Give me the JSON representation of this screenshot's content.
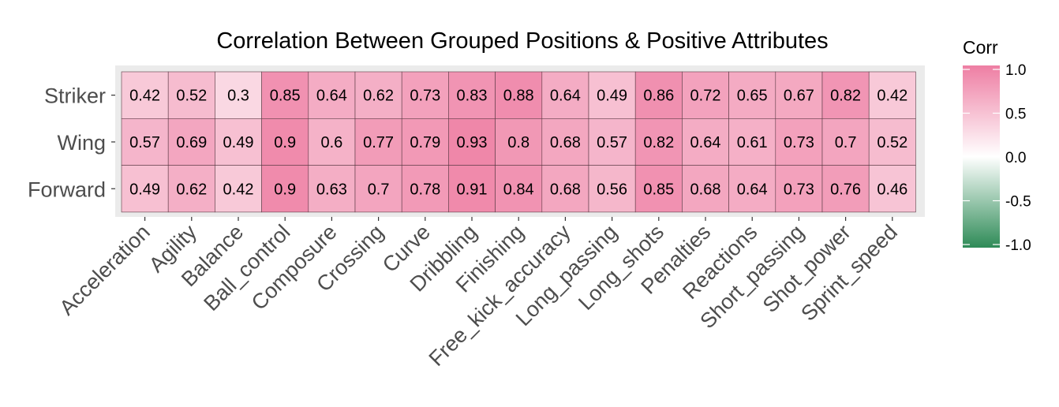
{
  "chart_data": {
    "type": "heatmap",
    "title": "Correlation Between Grouped Positions & Positive Attributes",
    "xlabel": "",
    "ylabel": "",
    "x_categories": [
      "Acceleration",
      "Agility",
      "Balance",
      "Ball_control",
      "Composure",
      "Crossing",
      "Curve",
      "Dribbling",
      "Finishing",
      "Free_kick_accuracy",
      "Long_passing",
      "Long_shots",
      "Penalties",
      "Reactions",
      "Short_passing",
      "Shot_power",
      "Sprint_speed"
    ],
    "y_categories": [
      "Striker",
      "Wing",
      "Forward"
    ],
    "values": [
      [
        0.42,
        0.52,
        0.3,
        0.85,
        0.64,
        0.62,
        0.73,
        0.83,
        0.88,
        0.64,
        0.49,
        0.86,
        0.72,
        0.65,
        0.67,
        0.82,
        0.42
      ],
      [
        0.57,
        0.69,
        0.49,
        0.9,
        0.6,
        0.77,
        0.79,
        0.93,
        0.8,
        0.68,
        0.57,
        0.82,
        0.64,
        0.61,
        0.73,
        0.7,
        0.52
      ],
      [
        0.49,
        0.62,
        0.42,
        0.9,
        0.63,
        0.7,
        0.78,
        0.91,
        0.84,
        0.68,
        0.56,
        0.85,
        0.68,
        0.64,
        0.73,
        0.76,
        0.46
      ]
    ],
    "legend": {
      "title": "Corr",
      "ticks": [
        1.0,
        0.5,
        0.0,
        -0.5,
        -1.0
      ],
      "tick_labels": [
        "1.0",
        "0.5",
        "0.0",
        "-0.5",
        "-1.0"
      ],
      "range": [
        -1,
        1
      ],
      "high_color": "#ee7ea3",
      "mid_color": "#ffffff",
      "low_color": "#2e8b57",
      "placement": "right"
    },
    "panel_background": "#ebebeb",
    "grid": false
  }
}
